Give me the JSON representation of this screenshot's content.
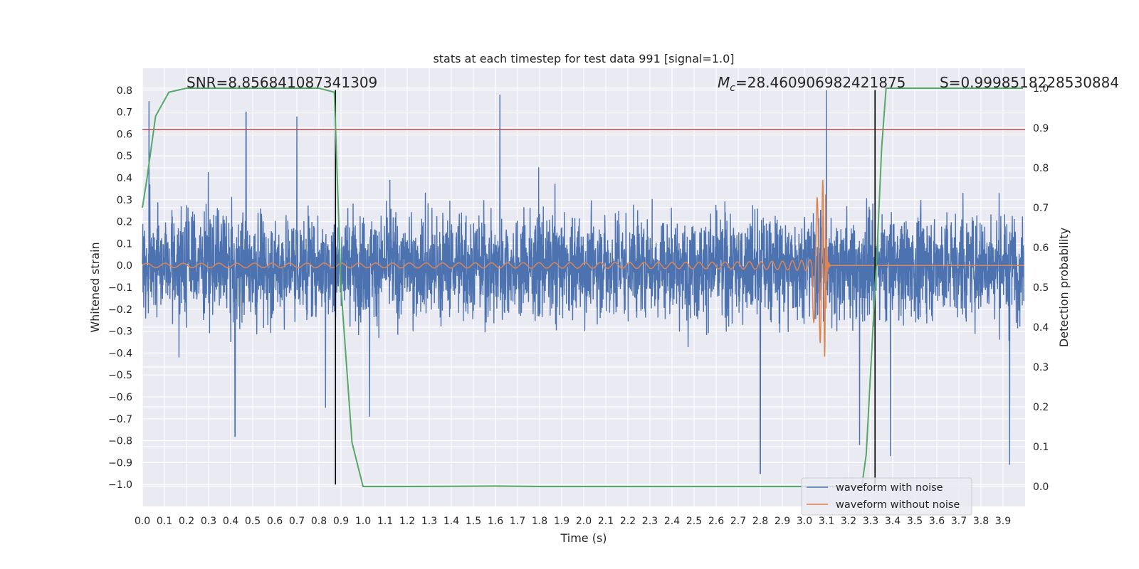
{
  "chart_data": {
    "type": "line",
    "title": "stats at each timestep for test data 991 [signal=1.0]",
    "xlabel": "Time (s)",
    "ylabel": "Whitened strain",
    "ylabel_right": "Detection probability",
    "xlim": [
      0.0,
      4.0
    ],
    "ylim": [
      -1.1,
      0.9
    ],
    "ylim_right": [
      -0.05,
      1.05
    ],
    "xticks": [
      0.0,
      0.1,
      0.2,
      0.3,
      0.4,
      0.5,
      0.6,
      0.7,
      0.8,
      0.9,
      1.0,
      1.1,
      1.2,
      1.3,
      1.4,
      1.5,
      1.6,
      1.7,
      1.8,
      1.9,
      2.0,
      2.1,
      2.2,
      2.3,
      2.4,
      2.5,
      2.6,
      2.7,
      2.8,
      2.9,
      3.0,
      3.1,
      3.2,
      3.3,
      3.4,
      3.5,
      3.6,
      3.7,
      3.8,
      3.9
    ],
    "xtick_labels": [
      "0.0",
      "0.1",
      "0.2",
      "0.3",
      "0.4",
      "0.5",
      "0.6",
      "0.7",
      "0.8",
      "0.9",
      "1.0",
      "1.1",
      "1.2",
      "1.3",
      "1.4",
      "1.5",
      "1.6",
      "1.7",
      "1.8",
      "1.9",
      "2.0",
      "2.1",
      "2.2",
      "2.3",
      "2.4",
      "2.5",
      "2.6",
      "2.7",
      "2.8",
      "2.9",
      "3.0",
      "3.1",
      "3.2",
      "3.3",
      "3.4",
      "3.5",
      "3.6",
      "3.7",
      "3.8",
      "3.9"
    ],
    "yticks": [
      0.8,
      0.7,
      0.6,
      0.5,
      0.4,
      0.3,
      0.2,
      0.1,
      0.0,
      -0.1,
      -0.2,
      -0.3,
      -0.4,
      -0.5,
      -0.6,
      -0.7,
      -0.8,
      -0.9,
      -1.0
    ],
    "ytick_labels": [
      "0.8",
      "0.7",
      "0.6",
      "0.5",
      "0.4",
      "0.3",
      "0.2",
      "0.1",
      "0.0",
      "−0.1",
      "−0.2",
      "−0.3",
      "−0.4",
      "−0.5",
      "−0.6",
      "−0.7",
      "−0.8",
      "−0.9",
      "−1.0"
    ],
    "yticks_right": [
      1.0,
      0.9,
      0.8,
      0.7,
      0.6,
      0.5,
      0.4,
      0.3,
      0.2,
      0.1,
      0.0
    ],
    "ytick_labels_right": [
      "1.0",
      "0.9",
      "0.8",
      "0.7",
      "0.6",
      "0.5",
      "0.4",
      "0.3",
      "0.2",
      "0.1",
      "0.0"
    ],
    "series": [
      {
        "name": "waveform with noise",
        "color": "#4c72b0",
        "kind": "noise",
        "amplitude_typical": 0.3,
        "amplitude_peak": 0.8,
        "extreme_points": [
          {
            "x": 0.03,
            "y": 0.75
          },
          {
            "x": 0.42,
            "y": -0.78
          },
          {
            "x": 0.47,
            "y": 0.7
          },
          {
            "x": 0.7,
            "y": 0.68
          },
          {
            "x": 0.83,
            "y": -0.65
          },
          {
            "x": 1.03,
            "y": -0.69
          },
          {
            "x": 1.62,
            "y": 0.78
          },
          {
            "x": 2.8,
            "y": -0.95
          },
          {
            "x": 3.1,
            "y": 0.8
          },
          {
            "x": 3.25,
            "y": -0.82
          },
          {
            "x": 3.39,
            "y": -0.87
          },
          {
            "x": 3.93,
            "y": -0.91
          }
        ]
      },
      {
        "name": "waveform without noise",
        "color": "#dd8452",
        "kind": "chirp",
        "start_amplitude": 0.01,
        "peak_amplitude": 0.43,
        "merger_time": 3.09,
        "ringdown_end": 3.11
      },
      {
        "name": "Detection probability",
        "color": "#55a868",
        "axis": "right",
        "x": [
          0.0,
          0.02,
          0.06,
          0.12,
          0.2,
          0.3,
          0.5,
          0.7,
          0.8,
          0.87,
          0.9,
          0.95,
          1.0,
          1.06,
          1.2,
          1.6,
          1.8,
          2.4,
          3.0,
          3.26,
          3.28,
          3.33,
          3.35,
          3.37,
          3.45,
          3.7,
          3.99
        ],
        "y": [
          0.7,
          0.77,
          0.93,
          0.99,
          1.0,
          1.0,
          1.0,
          1.0,
          1.0,
          0.99,
          0.5,
          0.11,
          0.0,
          0.0,
          0.0,
          0.001,
          0.0,
          0.0,
          0.0,
          0.0,
          0.08,
          0.6,
          0.85,
          1.0,
          1.0,
          1.0,
          1.0
        ]
      }
    ],
    "hlines": [
      {
        "y": 0.62,
        "color": "#c44e52"
      }
    ],
    "vlines": [
      {
        "x": 0.875,
        "color": "#000000"
      },
      {
        "x": 3.32,
        "color": "#000000"
      }
    ],
    "annotations": {
      "snr": "SNR=8.856841087341309",
      "mc_symbol": "M",
      "mc_subscript": "c",
      "mc_value": "=28.460906982421875",
      "s": "S=0.9998518228530884"
    },
    "legend": {
      "placement": "lower-right",
      "entries": [
        {
          "label": "waveform with noise",
          "color": "#4c72b0"
        },
        {
          "label": "waveform without noise",
          "color": "#dd8452"
        }
      ]
    },
    "grid": true,
    "background_color": "#eaeaf2"
  }
}
